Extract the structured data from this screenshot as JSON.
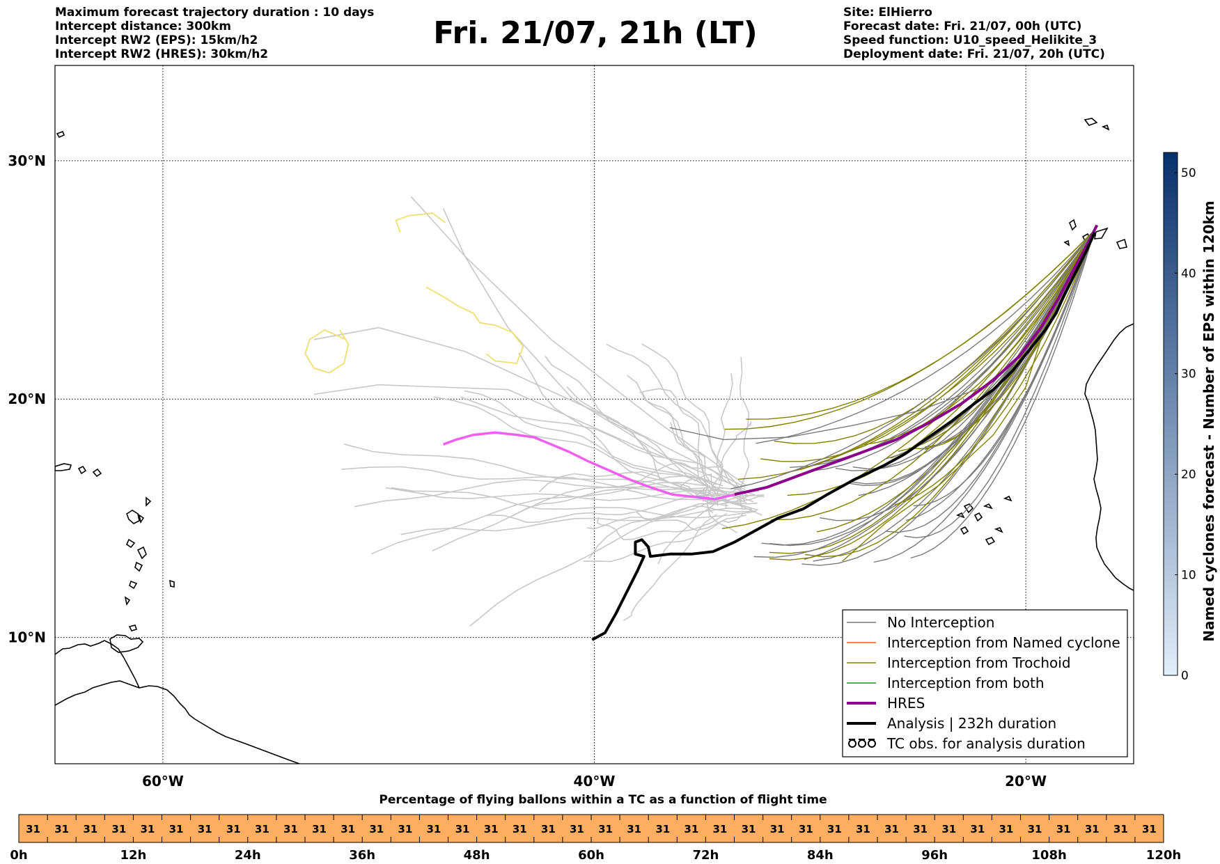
{
  "header": {
    "left_lines": [
      "Maximum forecast trajectory duration : 10 days",
      "Intercept distance: 300km",
      "Intercept RW2 (EPS):  15km/h2",
      "Intercept RW2 (HRES): 30km/h2"
    ],
    "title": "Fri. 21/07, 21h (LT)",
    "right_lines": [
      "Site: ElHierro",
      "Forecast date: Fri. 21/07, 00h (UTC)",
      "Speed function: U10_speed_Helikite_3",
      "Deployment date: Fri. 21/07, 20h (UTC)"
    ]
  },
  "map": {
    "extent": {
      "lon": [
        -65,
        -15
      ],
      "lat": [
        4.7,
        34
      ]
    },
    "lat_ticks": [
      {
        "value": 10,
        "label": "10°N"
      },
      {
        "value": 20,
        "label": "20°N"
      },
      {
        "value": 30,
        "label": "30°N"
      }
    ],
    "lon_ticks": [
      {
        "value": -60,
        "label": "60°W"
      },
      {
        "value": -40,
        "label": "40°W"
      },
      {
        "value": -20,
        "label": "20°W"
      }
    ],
    "colors": {
      "no_interception": "#7a7a7a",
      "named_cyclone": "#ff5a00",
      "trochoid": "#808000",
      "both": "#2a8a2a",
      "hres": "#8b008b",
      "hres_past": "#f060f0",
      "analysis": "#000000",
      "past_eps": "#c8c8c8",
      "yellow_eps": "#eee070"
    },
    "analysis_track": [
      [
        -40.1,
        9.9
      ],
      [
        -39.5,
        10.2
      ],
      [
        -39,
        11
      ],
      [
        -38.5,
        11.9
      ],
      [
        -38,
        12.8
      ],
      [
        -37.7,
        13.4
      ],
      [
        -38.1,
        13.5
      ],
      [
        -38.1,
        14
      ],
      [
        -37.8,
        14.1
      ],
      [
        -37.5,
        13.8
      ],
      [
        -37.4,
        13.4
      ],
      [
        -36.5,
        13.5
      ],
      [
        -35.5,
        13.5
      ],
      [
        -34.5,
        13.6
      ],
      [
        -33.5,
        14
      ],
      [
        -32.5,
        14.5
      ],
      [
        -31.5,
        15
      ],
      [
        -30.3,
        15.4
      ],
      [
        -29.2,
        16
      ],
      [
        -28,
        16.6
      ],
      [
        -26.6,
        17.2
      ],
      [
        -25.6,
        17.7
      ],
      [
        -24.5,
        18.4
      ],
      [
        -23.4,
        19.1
      ],
      [
        -22.4,
        19.8
      ],
      [
        -21.5,
        20.4
      ],
      [
        -20.6,
        21.2
      ],
      [
        -19.8,
        22.1
      ],
      [
        -19.1,
        22.9
      ],
      [
        -18.6,
        23.6
      ],
      [
        -18.2,
        24.4
      ],
      [
        -17.7,
        25.3
      ],
      [
        -17.2,
        26.2
      ],
      [
        -16.8,
        27
      ]
    ],
    "hres_track": [
      [
        -33.5,
        16
      ],
      [
        -32,
        16.3
      ],
      [
        -30.5,
        16.8
      ],
      [
        -29,
        17.3
      ],
      [
        -27.5,
        17.8
      ],
      [
        -26,
        18.3
      ],
      [
        -24.5,
        19
      ],
      [
        -23,
        19.8
      ],
      [
        -21.5,
        20.8
      ],
      [
        -20.3,
        21.8
      ],
      [
        -19.3,
        23
      ],
      [
        -18.5,
        24.2
      ],
      [
        -17.8,
        25.4
      ],
      [
        -17.2,
        26.4
      ],
      [
        -16.7,
        27.3
      ]
    ],
    "hres_past_track": [
      [
        -47,
        18.1
      ],
      [
        -46.4,
        18.3
      ],
      [
        -45.6,
        18.5
      ],
      [
        -44.6,
        18.6
      ],
      [
        -43.6,
        18.5
      ],
      [
        -42.8,
        18.4
      ],
      [
        -42,
        18.1
      ],
      [
        -41.2,
        17.8
      ],
      [
        -40.3,
        17.4
      ],
      [
        -39.3,
        17
      ],
      [
        -38.3,
        16.6
      ],
      [
        -37.4,
        16.3
      ],
      [
        -36.4,
        16
      ],
      [
        -35.4,
        15.9
      ],
      [
        -34.4,
        15.8
      ],
      [
        -33.5,
        16
      ]
    ],
    "legend": {
      "entries": [
        {
          "label": "No Interception",
          "color": "#7a7a7a",
          "style": "thin"
        },
        {
          "label": "Interception from Named cyclone",
          "color": "#ff5a00",
          "style": "thin"
        },
        {
          "label": "Interception from Trochoid",
          "color": "#808000",
          "style": "thin"
        },
        {
          "label": "Interception from both",
          "color": "#2a8a2a",
          "style": "thin"
        },
        {
          "label": "HRES",
          "color": "#8b008b",
          "style": "thick"
        },
        {
          "label": "Analysis | 232h duration",
          "color": "#000000",
          "style": "thick"
        },
        {
          "label": "TC obs. for analysis duration",
          "color": "#000000",
          "style": "cyclone"
        }
      ]
    }
  },
  "colorbar": {
    "title": "Named cyclones forecast - Number of EPS within 120km",
    "min": 0,
    "max": 52,
    "ticks": [
      0,
      10,
      20,
      30,
      40,
      50
    ],
    "color_low": "#e3eef9",
    "color_high": "#08306b"
  },
  "time_strip": {
    "title": "Percentage of flying ballons within a TC as a function of flight time",
    "values": [
      31,
      31,
      31,
      31,
      31,
      31,
      31,
      31,
      31,
      31,
      31,
      31,
      31,
      31,
      31,
      31,
      31,
      31,
      31,
      31,
      31,
      31,
      31,
      31,
      31,
      31,
      31,
      31,
      31,
      31,
      31,
      31,
      31,
      31,
      31,
      31,
      31,
      31,
      31,
      31
    ],
    "labels": [
      "0h",
      "12h",
      "24h",
      "36h",
      "48h",
      "60h",
      "72h",
      "84h",
      "96h",
      "108h",
      "120h"
    ],
    "fill": "#fdae61"
  }
}
